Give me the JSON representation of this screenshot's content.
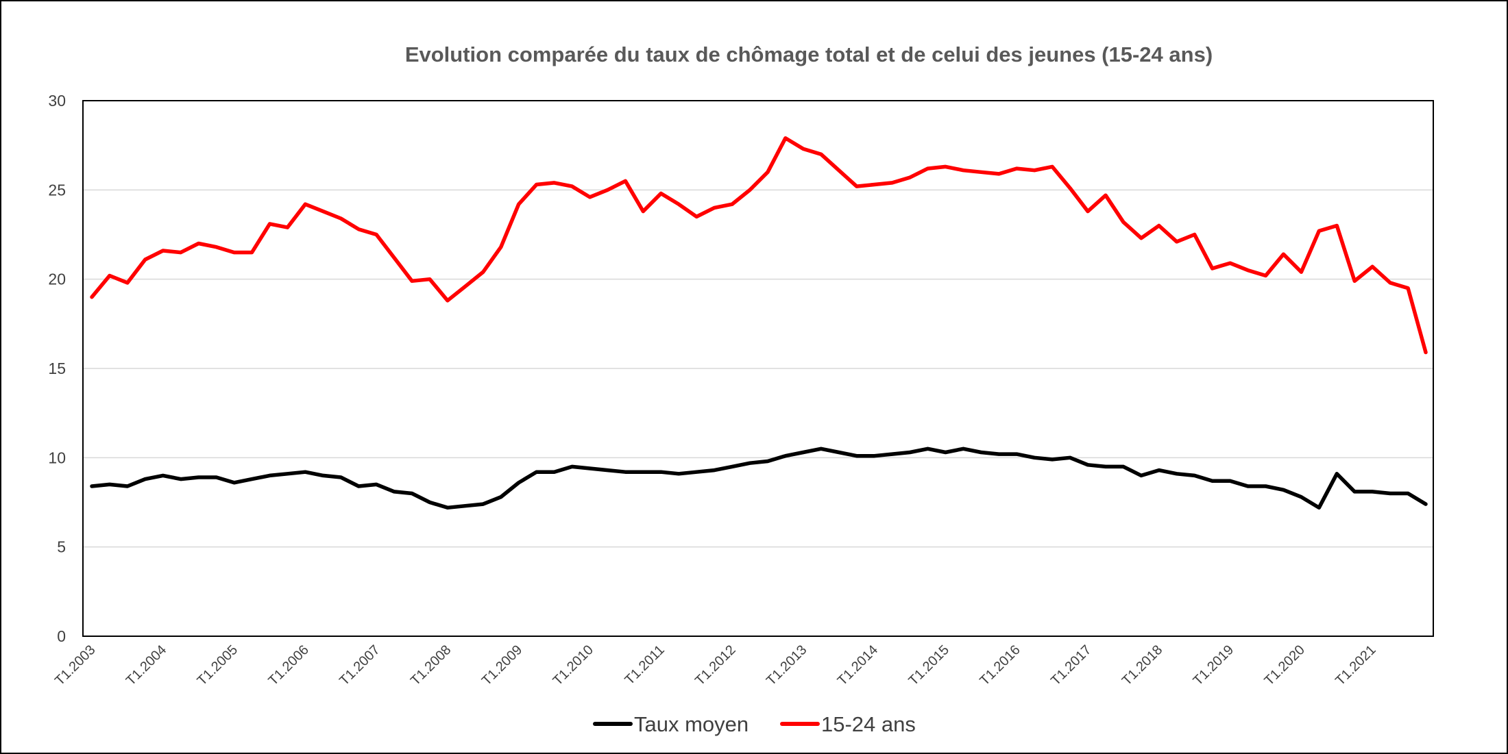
{
  "chart_data": {
    "type": "line",
    "title": "Evolution comparée du taux de chômage total et de celui des jeunes (15-24 ans)",
    "xlabel": "",
    "ylabel": "",
    "ylim": [
      0,
      30
    ],
    "yticks": [
      0,
      5,
      10,
      15,
      20,
      25,
      30
    ],
    "grid": true,
    "legend_position": "bottom",
    "categories": [
      "T1.2003",
      "T2.2003",
      "T3.2003",
      "T4.2003",
      "T1.2004",
      "T2.2004",
      "T3.2004",
      "T4.2004",
      "T1.2005",
      "T2.2005",
      "T3.2005",
      "T4.2005",
      "T1.2006",
      "T2.2006",
      "T3.2006",
      "T4.2006",
      "T1.2007",
      "T2.2007",
      "T3.2007",
      "T4.2007",
      "T1.2008",
      "T2.2008",
      "T3.2008",
      "T4.2008",
      "T1.2009",
      "T2.2009",
      "T3.2009",
      "T4.2009",
      "T1.2010",
      "T2.2010",
      "T3.2010",
      "T4.2010",
      "T1.2011",
      "T2.2011",
      "T3.2011",
      "T4.2011",
      "T1.2012",
      "T2.2012",
      "T3.2012",
      "T4.2012",
      "T1.2013",
      "T2.2013",
      "T3.2013",
      "T4.2013",
      "T1.2014",
      "T2.2014",
      "T3.2014",
      "T4.2014",
      "T1.2015",
      "T2.2015",
      "T3.2015",
      "T4.2015",
      "T1.2016",
      "T2.2016",
      "T3.2016",
      "T4.2016",
      "T1.2017",
      "T2.2017",
      "T3.2017",
      "T4.2017",
      "T1.2018",
      "T2.2018",
      "T3.2018",
      "T4.2018",
      "T1.2019",
      "T2.2019",
      "T3.2019",
      "T4.2019",
      "T1.2020",
      "T2.2020",
      "T3.2020",
      "T4.2020",
      "T1.2021",
      "T2.2021",
      "T3.2021",
      "T4.2021"
    ],
    "x_tick_labels": [
      "T1.2003",
      "T1.2004",
      "T1.2005",
      "T1.2006",
      "T1.2007",
      "T1.2008",
      "T1.2009",
      "T1.2010",
      "T1.2011",
      "T1.2012",
      "T1.2013",
      "T1.2014",
      "T1.2015",
      "T1.2016",
      "T1.2017",
      "T1.2018",
      "T1.2019",
      "T1.2020",
      "T1.2021"
    ],
    "series": [
      {
        "name": "Taux moyen",
        "color": "#000000",
        "values": [
          8.4,
          8.5,
          8.4,
          8.8,
          9.0,
          8.8,
          8.9,
          8.9,
          8.6,
          8.8,
          9.0,
          9.1,
          9.2,
          9.0,
          8.9,
          8.4,
          8.5,
          8.1,
          8.0,
          7.5,
          7.2,
          7.3,
          7.4,
          7.8,
          8.6,
          9.2,
          9.2,
          9.5,
          9.4,
          9.3,
          9.2,
          9.2,
          9.2,
          9.1,
          9.2,
          9.3,
          9.5,
          9.7,
          9.8,
          10.1,
          10.3,
          10.5,
          10.3,
          10.1,
          10.1,
          10.2,
          10.3,
          10.5,
          10.3,
          10.5,
          10.3,
          10.2,
          10.2,
          10.0,
          9.9,
          10.0,
          9.6,
          9.5,
          9.5,
          9.0,
          9.3,
          9.1,
          9.0,
          8.7,
          8.7,
          8.4,
          8.4,
          8.2,
          7.8,
          7.2,
          9.1,
          8.1,
          8.1,
          8.0,
          8.0,
          7.4
        ]
      },
      {
        "name": "15-24 ans",
        "color": "#ff0000",
        "values": [
          19.0,
          20.2,
          19.8,
          21.1,
          21.6,
          21.5,
          22.0,
          21.8,
          21.5,
          21.5,
          23.1,
          22.9,
          24.2,
          23.8,
          23.4,
          22.8,
          22.5,
          21.2,
          19.9,
          20.0,
          18.8,
          19.6,
          20.4,
          21.8,
          24.2,
          25.3,
          25.4,
          25.2,
          24.6,
          25.0,
          25.5,
          23.8,
          24.8,
          24.2,
          23.5,
          24.0,
          24.2,
          25.0,
          26.0,
          27.9,
          27.3,
          27.0,
          26.1,
          25.2,
          25.3,
          25.4,
          25.7,
          26.2,
          26.3,
          26.1,
          26.0,
          25.9,
          26.2,
          26.1,
          26.3,
          25.1,
          23.8,
          24.7,
          23.2,
          22.3,
          23.0,
          22.1,
          22.5,
          20.6,
          20.9,
          20.5,
          20.2,
          21.4,
          20.4,
          22.7,
          23.0,
          19.9,
          20.7,
          19.8,
          19.5,
          15.9
        ]
      }
    ]
  }
}
